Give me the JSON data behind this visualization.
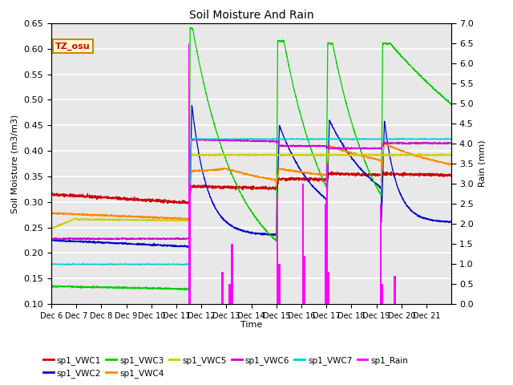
{
  "title": "Soil Moisture And Rain",
  "xlabel": "Time",
  "ylabel_left": "Soil Moisture (m3/m3)",
  "ylabel_right": "Rain (mm)",
  "ylim_left": [
    0.1,
    0.65
  ],
  "ylim_right": [
    0.0,
    7.0
  ],
  "yticks_left": [
    0.1,
    0.15,
    0.2,
    0.25,
    0.3,
    0.35,
    0.4,
    0.45,
    0.5,
    0.55,
    0.6,
    0.65
  ],
  "yticks_right": [
    0.0,
    0.5,
    1.0,
    1.5,
    2.0,
    2.5,
    3.0,
    3.5,
    4.0,
    4.5,
    5.0,
    5.5,
    6.0,
    6.5,
    7.0
  ],
  "colors": {
    "VWC1": "#cc0000",
    "VWC2": "#0000cc",
    "VWC3": "#00cc00",
    "VWC4": "#ff8800",
    "VWC5": "#cccc00",
    "VWC6": "#cc00cc",
    "VWC7": "#00cccc",
    "Rain": "#ff00ff"
  },
  "annotation_text": "TZ_osu",
  "annotation_color": "#cc0000",
  "annotation_bg": "#ffffcc",
  "annotation_border": "#cc8800",
  "n_days": 16,
  "background_color": "#e8e8e8",
  "grid_color": "#ffffff",
  "xtick_labels": [
    "Dec 6",
    "Dec 7",
    "Dec 8",
    "Dec 9",
    "Dec 10",
    "Dec 11",
    "Dec 12",
    "Dec 13",
    "Dec 14",
    "Dec 15",
    "Dec 16",
    "Dec 17",
    "Dec 18",
    "Dec 19",
    "Dec 20",
    "Dec 21"
  ],
  "legend_row1": [
    "sp1_VWC1",
    "sp1_VWC2",
    "sp1_VWC3",
    "sp1_VWC4",
    "sp1_VWC5",
    "sp1_VWC6"
  ],
  "legend_row2": [
    "sp1_VWC7",
    "sp1_Rain"
  ],
  "legend_keys_row1": [
    "VWC1",
    "VWC2",
    "VWC3",
    "VWC4",
    "VWC5",
    "VWC6"
  ],
  "legend_keys_row2": [
    "VWC7",
    "Rain"
  ]
}
